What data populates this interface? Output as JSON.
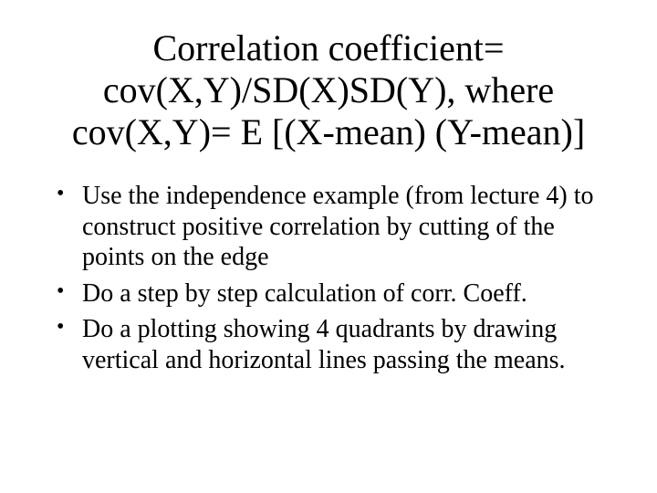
{
  "title_fontsize": 40,
  "bullet_fontsize": 28,
  "text_color": "#000000",
  "background_color": "#ffffff",
  "font_family": "Times New Roman",
  "title": "Correlation coefficient= cov(X,Y)/SD(X)SD(Y), where cov(X,Y)= E [(X-mean) (Y-mean)]",
  "bullets": [
    "Use the independence example (from lecture 4) to construct positive correlation by cutting of the points on the edge",
    "Do a step by step calculation of corr. Coeff.",
    "Do a plotting showing 4 quadrants by drawing vertical and horizontal lines passing the means."
  ]
}
